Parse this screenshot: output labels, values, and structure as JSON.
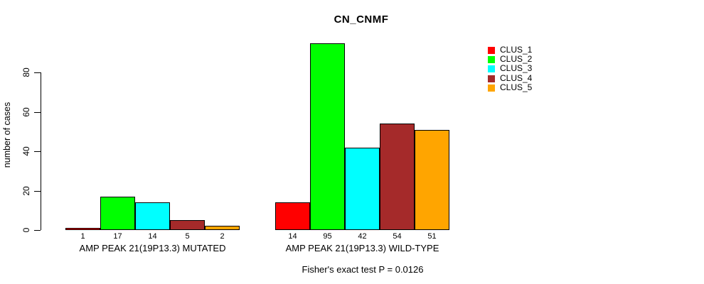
{
  "chart_data": {
    "type": "bar",
    "title": "CN_CNMF",
    "ylabel": "number of cases",
    "xlabel": "",
    "yticks": [
      0,
      20,
      40,
      60,
      80
    ],
    "ylim": [
      0,
      95
    ],
    "grid": false,
    "legend_position": "top-right",
    "bar_border_color": "#000000",
    "series": [
      {
        "name": "CLUS_1",
        "color": "#ff0000"
      },
      {
        "name": "CLUS_2",
        "color": "#00ff00"
      },
      {
        "name": "CLUS_3",
        "color": "#00ffff"
      },
      {
        "name": "CLUS_4",
        "color": "#a52a2a"
      },
      {
        "name": "CLUS_5",
        "color": "#ffa500"
      }
    ],
    "groups": [
      {
        "label": "AMP PEAK 21(19P13.3) MUTATED",
        "values": [
          1,
          17,
          14,
          5,
          2
        ]
      },
      {
        "label": "AMP PEAK 21(19P13.3) WILD-TYPE",
        "values": [
          14,
          95,
          42,
          54,
          51
        ]
      }
    ],
    "footnote": "Fisher's exact test P = 0.0126"
  }
}
